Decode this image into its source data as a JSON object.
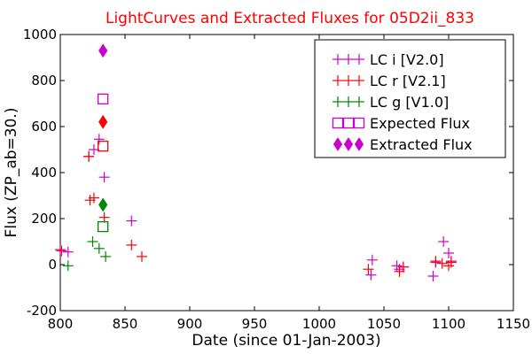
{
  "chart_data": {
    "type": "scatter",
    "title": "LightCurves and Extracted Fluxes for 05D2ii_833",
    "title_color": "#ff0000",
    "xlabel": "Date (since 01-Jan-2003)",
    "ylabel": "Flux (ZP_ab=30.)",
    "xlim": [
      800,
      1150
    ],
    "ylim": [
      -200,
      1000
    ],
    "x_ticks": [
      800,
      850,
      900,
      950,
      1000,
      1050,
      1100,
      1150
    ],
    "y_ticks": [
      -200,
      0,
      200,
      400,
      600,
      800,
      1000
    ],
    "grid": false,
    "legend_position": "top-right",
    "series": [
      {
        "name": "LC i [V2.0]",
        "color": "#cc00cc",
        "marker": "plus",
        "points": [
          {
            "x": 801,
            "y": 60
          },
          {
            "x": 806,
            "y": 55
          },
          {
            "x": 822,
            "y": 470
          },
          {
            "x": 826,
            "y": 500
          },
          {
            "x": 830,
            "y": 545
          },
          {
            "x": 834,
            "y": 380
          },
          {
            "x": 855,
            "y": 190
          },
          {
            "x": 1040,
            "y": -45
          },
          {
            "x": 1041,
            "y": 20
          },
          {
            "x": 1060,
            "y": -5
          },
          {
            "x": 1062,
            "y": -20
          },
          {
            "x": 1065,
            "y": -10
          },
          {
            "x": 1088,
            "y": -50
          },
          {
            "x": 1090,
            "y": 10
          },
          {
            "x": 1096,
            "y": 100
          },
          {
            "x": 1100,
            "y": 50
          },
          {
            "x": 1102,
            "y": 15
          }
        ]
      },
      {
        "name": "LC r [V2.1]",
        "color": "#ff0000",
        "marker": "plus",
        "points": [
          {
            "x": 800,
            "y": 65
          },
          {
            "x": 822,
            "y": 470
          },
          {
            "x": 823,
            "y": 280
          },
          {
            "x": 826,
            "y": 290
          },
          {
            "x": 834,
            "y": 205
          },
          {
            "x": 855,
            "y": 85
          },
          {
            "x": 863,
            "y": 35
          },
          {
            "x": 1038,
            "y": -20
          },
          {
            "x": 1062,
            "y": -30
          },
          {
            "x": 1065,
            "y": -10
          },
          {
            "x": 1090,
            "y": 15
          },
          {
            "x": 1095,
            "y": 5
          },
          {
            "x": 1100,
            "y": -5
          },
          {
            "x": 1102,
            "y": 10
          }
        ]
      },
      {
        "name": "LC g [V1.0]",
        "color": "#008800",
        "marker": "plus",
        "points": [
          {
            "x": 806,
            "y": -5
          },
          {
            "x": 825,
            "y": 100
          },
          {
            "x": 830,
            "y": 70
          },
          {
            "x": 835,
            "y": 35
          }
        ]
      },
      {
        "name": "Expected Flux",
        "marker": "square",
        "points": [
          {
            "x": 833,
            "y": 720,
            "color": "#cc00cc"
          },
          {
            "x": 833,
            "y": 515,
            "color": "#ff0000"
          },
          {
            "x": 833,
            "y": 165,
            "color": "#008800"
          }
        ]
      },
      {
        "name": "Extracted Flux",
        "marker": "diamond",
        "points": [
          {
            "x": 833,
            "y": 930,
            "color": "#cc00cc"
          },
          {
            "x": 833,
            "y": 620,
            "color": "#ff0000"
          },
          {
            "x": 833,
            "y": 260,
            "color": "#008800"
          }
        ]
      }
    ],
    "legend": [
      {
        "label": "LC i [V2.0]",
        "color": "#cc00cc",
        "marker": "plus"
      },
      {
        "label": "LC r [V2.1]",
        "color": "#ff0000",
        "marker": "plus"
      },
      {
        "label": "LC g [V1.0]",
        "color": "#008800",
        "marker": "plus"
      },
      {
        "label": "Expected Flux",
        "color": "#cc00cc",
        "marker": "square"
      },
      {
        "label": "Extracted Flux",
        "color": "#cc00cc",
        "marker": "diamond"
      }
    ]
  }
}
